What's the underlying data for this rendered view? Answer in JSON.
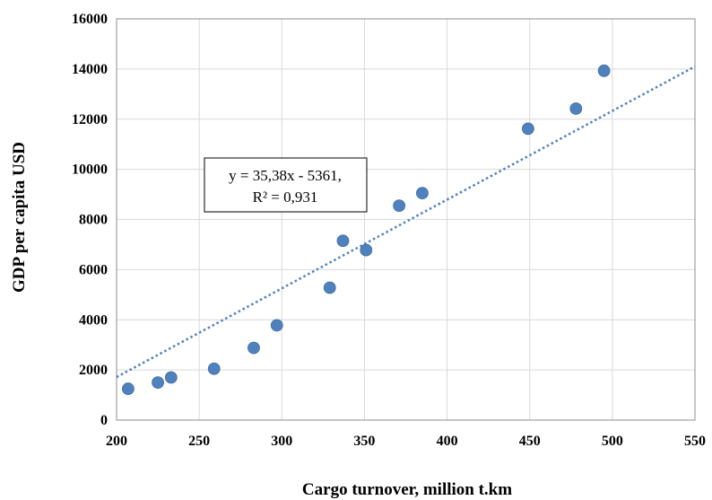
{
  "chart_data": {
    "type": "scatter",
    "xlabel": "Cargo turnover, million t.km",
    "ylabel": "GDP per capita USD",
    "xlim": [
      200,
      550
    ],
    "ylim": [
      0,
      16000
    ],
    "x_ticks": [
      200,
      250,
      300,
      350,
      400,
      450,
      500,
      550
    ],
    "y_ticks": [
      0,
      2000,
      4000,
      6000,
      8000,
      10000,
      12000,
      14000,
      16000
    ],
    "grid": true,
    "legend": "none",
    "marker_color": "#4F81BD",
    "trendline_color": "#4F81BD",
    "points": [
      {
        "x": 207,
        "y": 1250
      },
      {
        "x": 225,
        "y": 1500
      },
      {
        "x": 233,
        "y": 1700
      },
      {
        "x": 259,
        "y": 2050
      },
      {
        "x": 283,
        "y": 2880
      },
      {
        "x": 297,
        "y": 3780
      },
      {
        "x": 329,
        "y": 5280
      },
      {
        "x": 337,
        "y": 7150
      },
      {
        "x": 351,
        "y": 6780
      },
      {
        "x": 371,
        "y": 8550
      },
      {
        "x": 385,
        "y": 9050
      },
      {
        "x": 449,
        "y": 11620
      },
      {
        "x": 478,
        "y": 12420
      },
      {
        "x": 495,
        "y": 13930
      }
    ],
    "trendline": {
      "slope": 35.38,
      "intercept": -5361,
      "equation_label": "y = 35,38x - 5361,",
      "r2_label": "R² = 0,931"
    }
  }
}
